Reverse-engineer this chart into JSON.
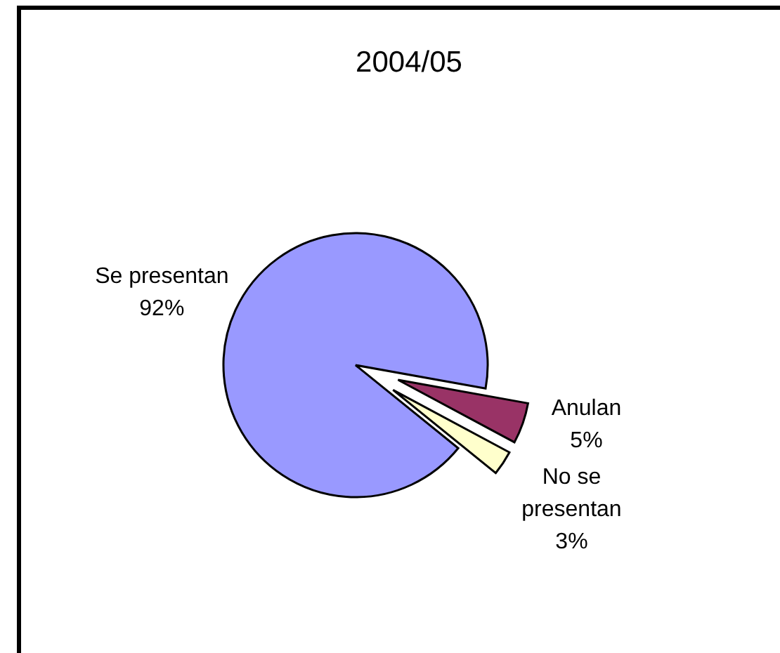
{
  "chart_data": {
    "type": "pie",
    "title": "2004/05",
    "categories": [
      "Se presentan",
      "Anulan",
      "No se presentan"
    ],
    "values": [
      92,
      5,
      3
    ],
    "colors": [
      "#9999ff",
      "#993366",
      "#ffffcc"
    ],
    "value_labels": [
      "92%",
      "5%",
      "3%"
    ]
  }
}
